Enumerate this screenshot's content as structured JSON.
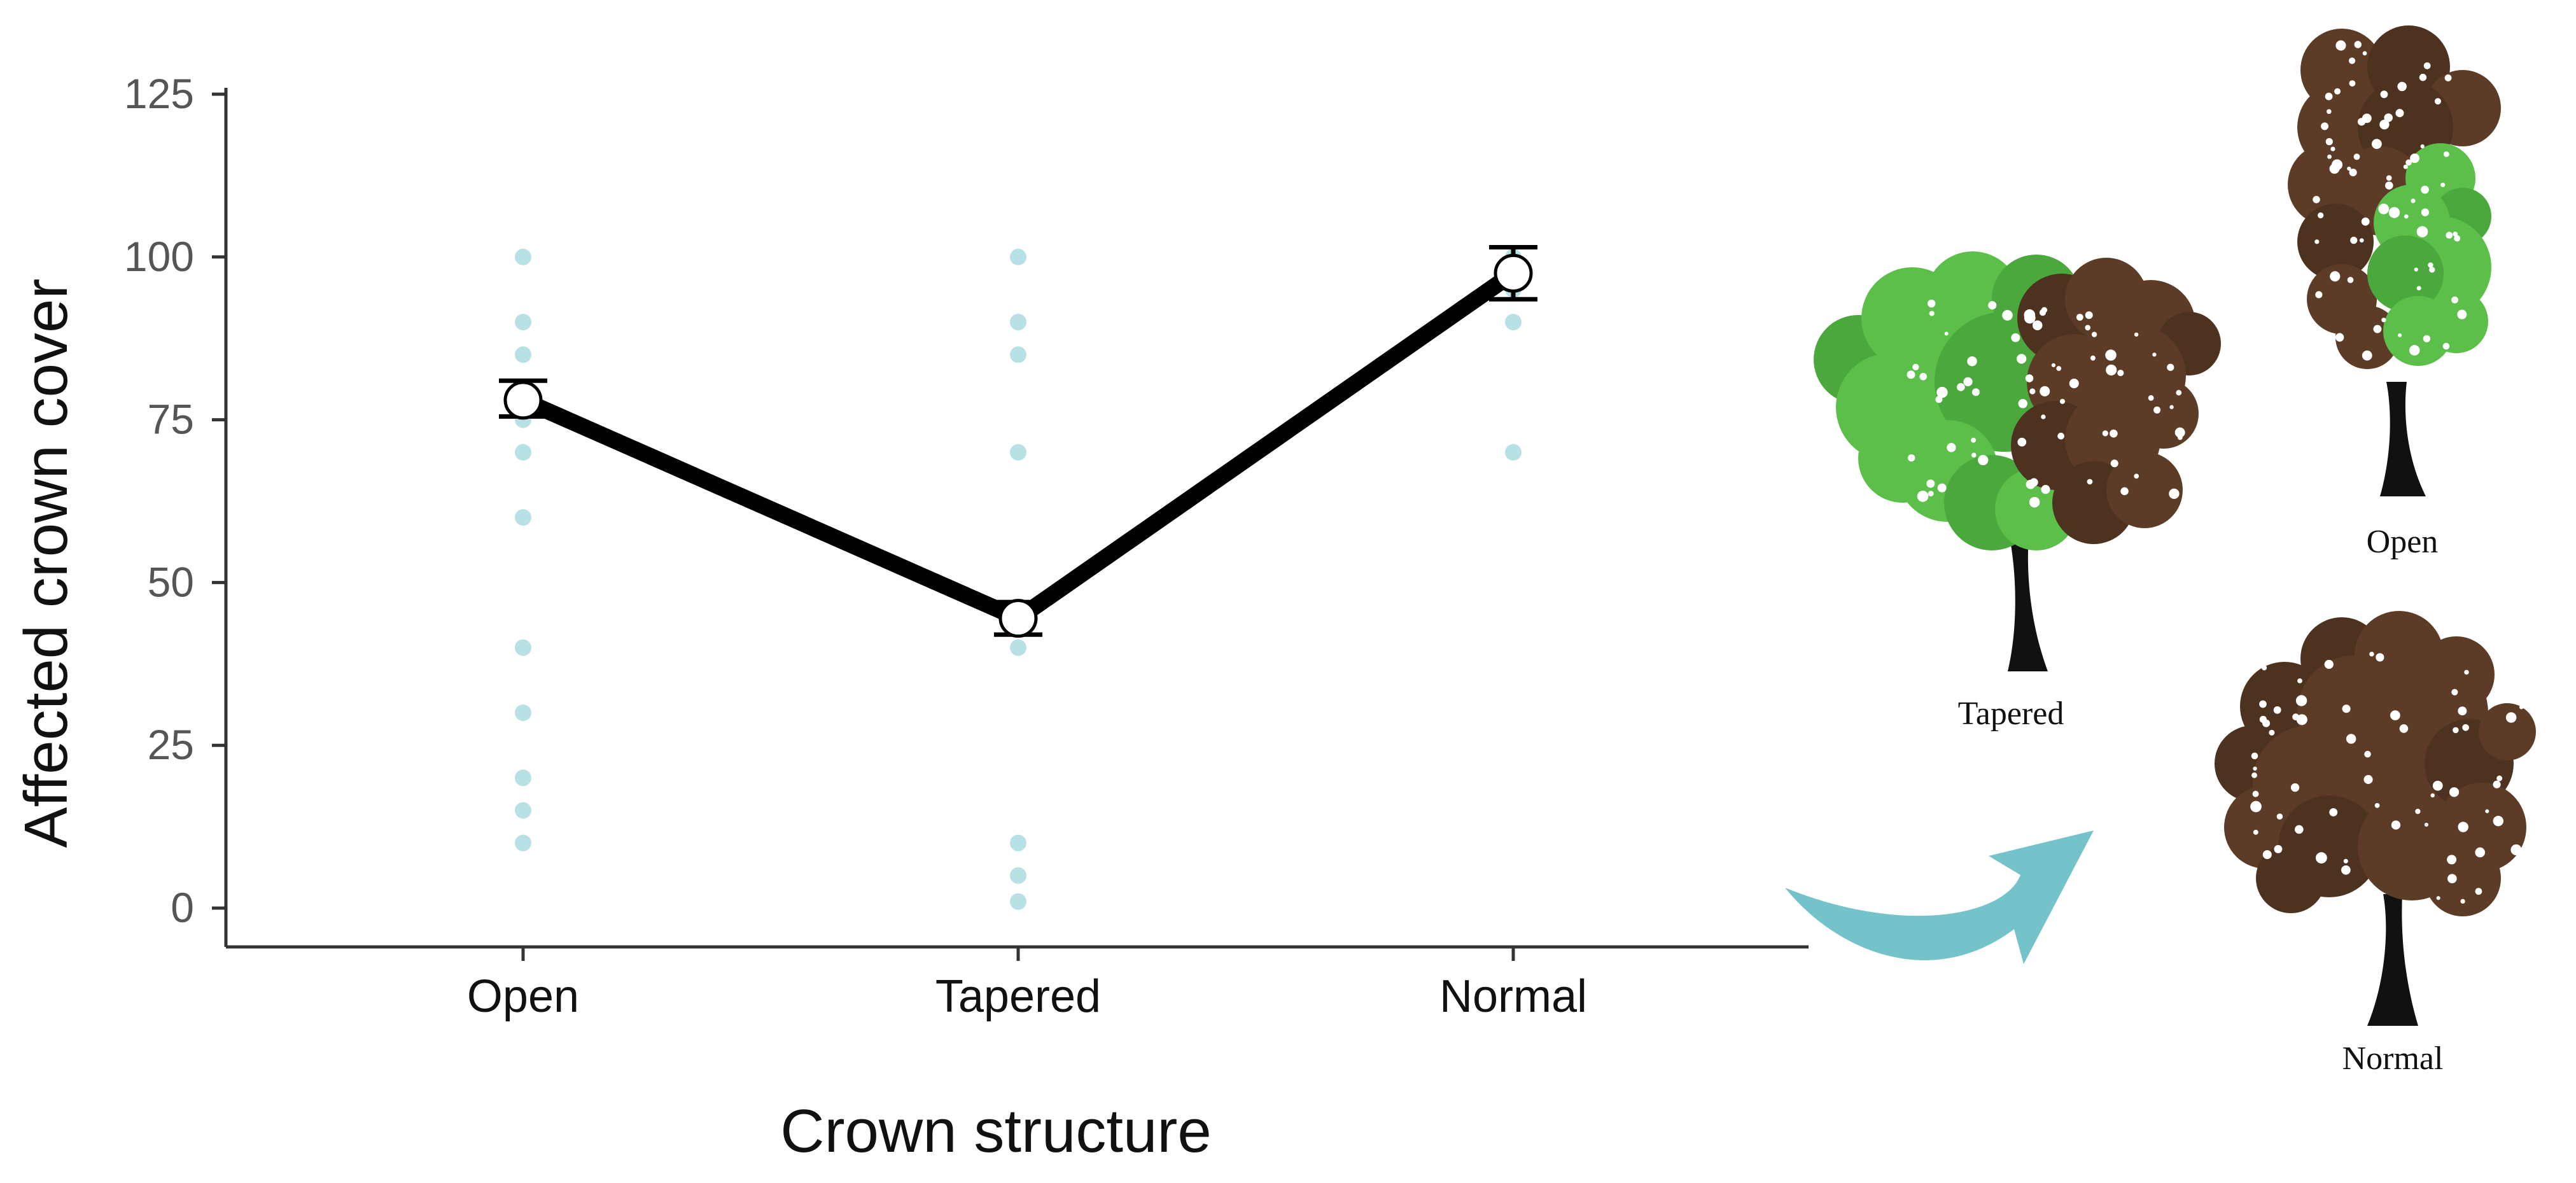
{
  "chart_data": {
    "type": "line",
    "title": "",
    "xlabel": "Crown structure",
    "ylabel": "Affected crown cover",
    "categories": [
      "Open",
      "Tapered",
      "Normal"
    ],
    "ylim": [
      0,
      125
    ],
    "yticks": [
      0,
      25,
      50,
      75,
      100,
      125
    ],
    "grid": false,
    "legend": "none",
    "series": [
      {
        "values": [
          78,
          44.5,
          97.5
        ],
        "error_low": [
          75.5,
          42,
          93.5
        ],
        "error_high": [
          81,
          47,
          101.5
        ]
      }
    ],
    "raw_points": [
      {
        "category": "Open",
        "values": [
          100,
          90,
          85,
          75,
          70,
          60,
          40,
          30,
          20,
          15,
          10
        ]
      },
      {
        "category": "Tapered",
        "values": [
          100,
          90,
          85,
          70,
          40,
          10,
          5,
          1
        ]
      },
      {
        "category": "Normal",
        "values": [
          100,
          95,
          90,
          70
        ]
      }
    ],
    "colors": {
      "line": "#000000",
      "raw_point": "#7cc8d0",
      "mean_marker_fill": "#ffffff",
      "axis": "#333333"
    }
  },
  "illustration": {
    "labels": {
      "tapered": "Tapered",
      "open": "Open",
      "normal": "Normal"
    },
    "colors": {
      "healthy_foliage": "#5bbf4a",
      "affected_foliage": "#5c3c26",
      "trunk": "#111111",
      "arrow": "#74c2ca"
    }
  }
}
